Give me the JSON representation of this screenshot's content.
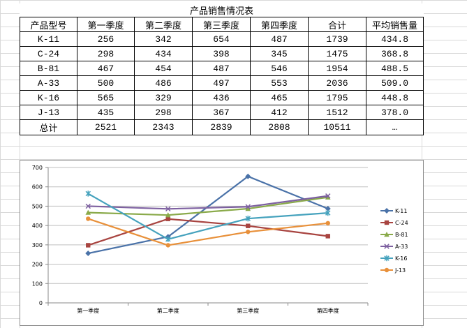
{
  "table": {
    "title": "产品销售情况表",
    "headers": [
      "产品型号",
      "第一季度",
      "第二季度",
      "第三季度",
      "第四季度",
      "合计",
      "平均销售量"
    ],
    "rows": [
      [
        "K-11",
        "256",
        "342",
        "654",
        "487",
        "1739",
        "434.8"
      ],
      [
        "C-24",
        "298",
        "434",
        "398",
        "345",
        "1475",
        "368.8"
      ],
      [
        "B-81",
        "467",
        "454",
        "487",
        "546",
        "1954",
        "488.5"
      ],
      [
        "A-33",
        "500",
        "486",
        "497",
        "553",
        "2036",
        "509.0"
      ],
      [
        "K-16",
        "565",
        "329",
        "436",
        "465",
        "1795",
        "448.8"
      ],
      [
        "J-13",
        "435",
        "298",
        "367",
        "412",
        "1512",
        "378.0"
      ],
      [
        "总计",
        "2521",
        "2343",
        "2839",
        "2808",
        "10511",
        "…"
      ]
    ]
  },
  "chart_data": {
    "type": "line",
    "title": "",
    "xlabel": "",
    "ylabel": "",
    "categories": [
      "第一季度",
      "第二季度",
      "第三季度",
      "第四季度"
    ],
    "ylim": [
      0,
      700
    ],
    "yticks": [
      0,
      100,
      200,
      300,
      400,
      500,
      600,
      700
    ],
    "grid": true,
    "legend_position": "right",
    "series": [
      {
        "name": "K-11",
        "values": [
          256,
          342,
          654,
          487
        ],
        "color": "#4a72a8",
        "marker": "diamond"
      },
      {
        "name": "C-24",
        "values": [
          298,
          434,
          398,
          345
        ],
        "color": "#a84440",
        "marker": "square"
      },
      {
        "name": "B-81",
        "values": [
          467,
          454,
          487,
          546
        ],
        "color": "#8aaa4a",
        "marker": "triangle"
      },
      {
        "name": "A-33",
        "values": [
          500,
          486,
          497,
          553
        ],
        "color": "#7d60a0",
        "marker": "x"
      },
      {
        "name": "K-16",
        "values": [
          565,
          329,
          436,
          465
        ],
        "color": "#45a2bd",
        "marker": "star"
      },
      {
        "name": "J-13",
        "values": [
          435,
          298,
          367,
          412
        ],
        "color": "#e8903a",
        "marker": "circle"
      }
    ]
  }
}
